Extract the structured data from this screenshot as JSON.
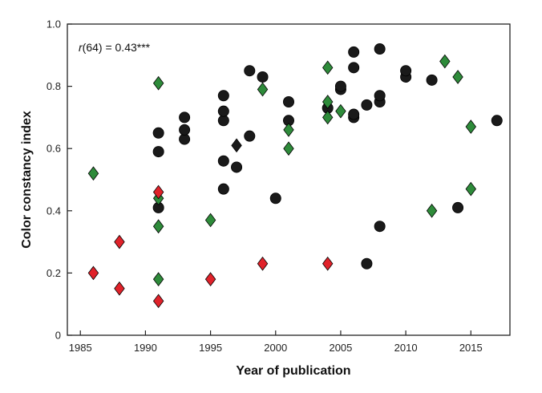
{
  "chart_data": {
    "type": "scatter",
    "xlabel": "Year of publication",
    "ylabel": "Color constancy index",
    "annotation": {
      "r_symbol": "r",
      "text": "(64) = 0.43***"
    },
    "xlim": [
      1984,
      2018
    ],
    "ylim": [
      0,
      1.0
    ],
    "x_ticks": [
      1985,
      1990,
      1995,
      2000,
      2005,
      2010,
      2015
    ],
    "y_ticks": [
      0,
      0.2,
      0.4,
      0.6,
      0.8,
      1.0
    ],
    "y_tick_labels": [
      "0",
      "0.2",
      "0.4",
      "0.6",
      "0.8",
      "1.0"
    ],
    "grid": false,
    "series": [
      {
        "marker": "circle",
        "color": "#1a1a1a",
        "points": [
          [
            1991,
            0.41
          ],
          [
            1991,
            0.59
          ],
          [
            1991,
            0.65
          ],
          [
            1993,
            0.63
          ],
          [
            1993,
            0.66
          ],
          [
            1993,
            0.7
          ],
          [
            1996,
            0.47
          ],
          [
            1996,
            0.56
          ],
          [
            1996,
            0.69
          ],
          [
            1996,
            0.72
          ],
          [
            1996,
            0.77
          ],
          [
            1997,
            0.54
          ],
          [
            1998,
            0.64
          ],
          [
            1998,
            0.85
          ],
          [
            1999,
            0.83
          ],
          [
            2000,
            0.44
          ],
          [
            2001,
            0.69
          ],
          [
            2001,
            0.75
          ],
          [
            2004,
            0.73
          ],
          [
            2005,
            0.79
          ],
          [
            2005,
            0.8
          ],
          [
            2006,
            0.7
          ],
          [
            2006,
            0.71
          ],
          [
            2006,
            0.86
          ],
          [
            2006,
            0.91
          ],
          [
            2007,
            0.23
          ],
          [
            2007,
            0.74
          ],
          [
            2008,
            0.35
          ],
          [
            2008,
            0.75
          ],
          [
            2008,
            0.77
          ],
          [
            2008,
            0.92
          ],
          [
            2010,
            0.83
          ],
          [
            2010,
            0.85
          ],
          [
            2012,
            0.82
          ],
          [
            2014,
            0.41
          ],
          [
            2017,
            0.69
          ]
        ]
      },
      {
        "marker": "diamond",
        "color": "#1a1a1a",
        "points": [
          [
            1997,
            0.61
          ]
        ]
      },
      {
        "marker": "diamond",
        "color": "#2e8b3a",
        "points": [
          [
            1986,
            0.52
          ],
          [
            1991,
            0.18
          ],
          [
            1991,
            0.35
          ],
          [
            1991,
            0.44
          ],
          [
            1991,
            0.81
          ],
          [
            1995,
            0.37
          ],
          [
            1999,
            0.79
          ],
          [
            2001,
            0.6
          ],
          [
            2001,
            0.66
          ],
          [
            2004,
            0.7
          ],
          [
            2004,
            0.75
          ],
          [
            2004,
            0.86
          ],
          [
            2005,
            0.72
          ],
          [
            2012,
            0.4
          ],
          [
            2013,
            0.88
          ],
          [
            2014,
            0.83
          ],
          [
            2015,
            0.47
          ],
          [
            2015,
            0.67
          ]
        ]
      },
      {
        "marker": "diamond",
        "color": "#e0222a",
        "points": [
          [
            1986,
            0.2
          ],
          [
            1988,
            0.15
          ],
          [
            1988,
            0.3
          ],
          [
            1991,
            0.11
          ],
          [
            1991,
            0.46
          ],
          [
            1995,
            0.18
          ],
          [
            1999,
            0.23
          ],
          [
            2004,
            0.23
          ]
        ]
      }
    ]
  }
}
